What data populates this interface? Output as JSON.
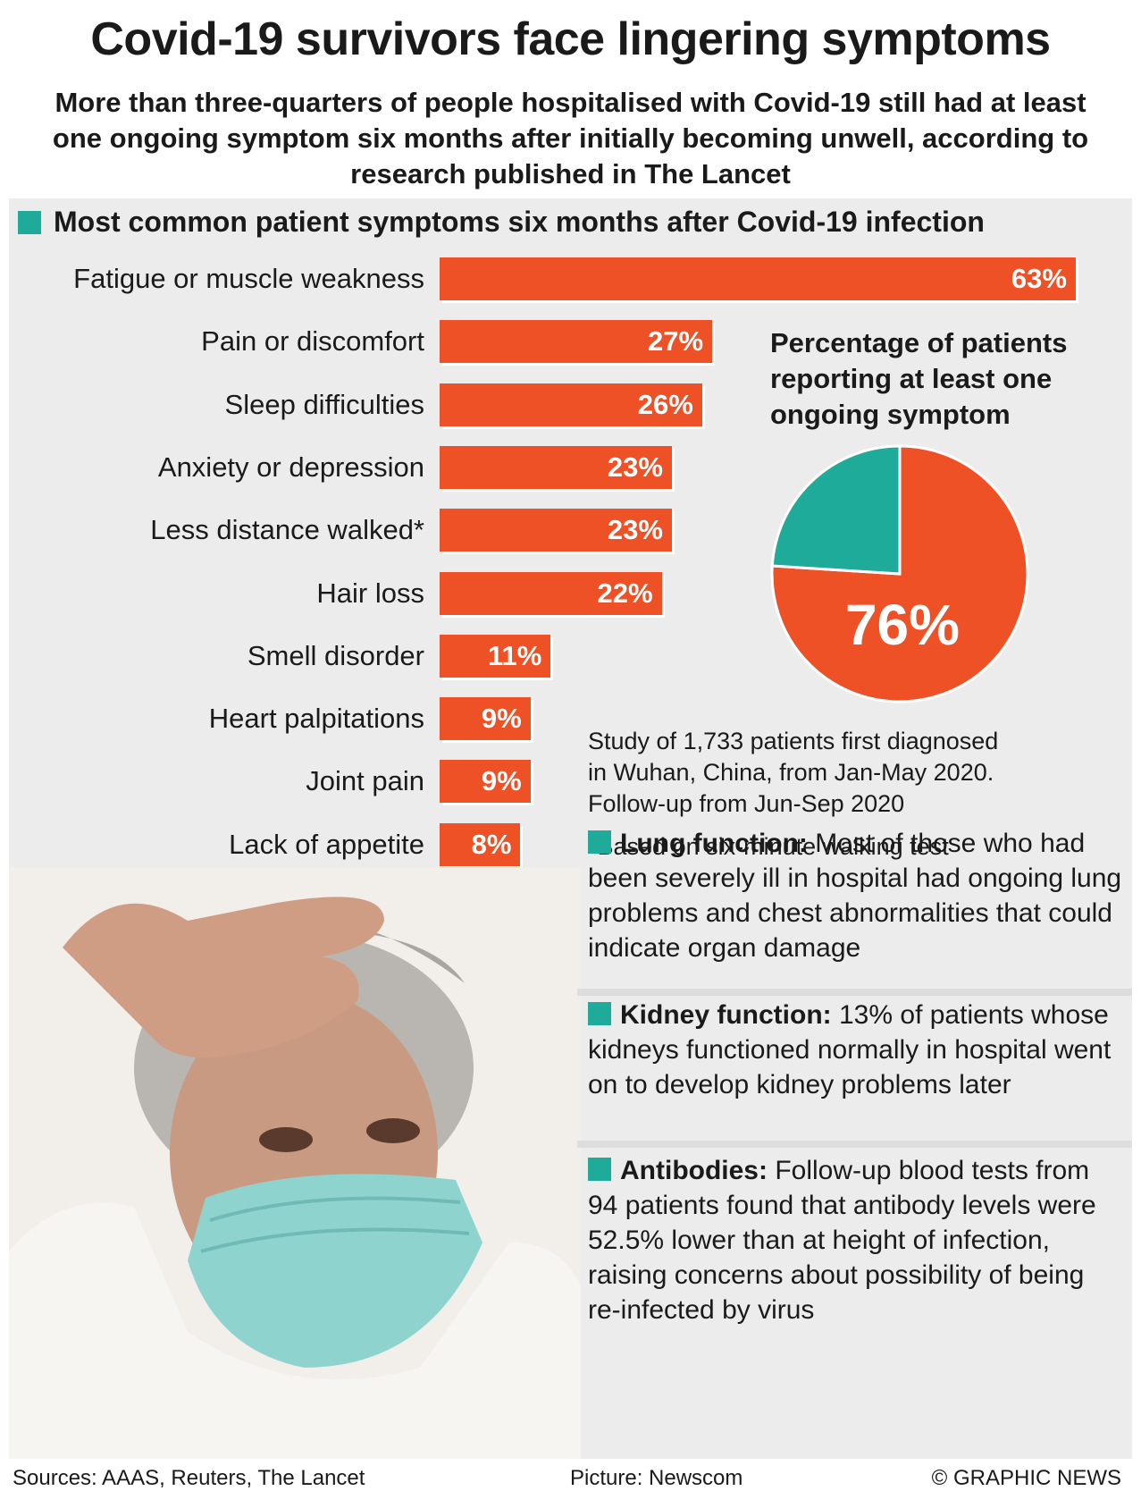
{
  "header": {
    "title": "Covid-19 survivors face lingering symptoms",
    "subtitle": "More than three-quarters of people hospitalised with Covid-19 still had at least one ongoing symptom six months after initially becoming unwell, according to research published in The Lancet"
  },
  "section_title": "Most common patient symptoms six months after Covid-19 infection",
  "colors": {
    "bar": "#ee5125",
    "accent": "#1fab9a",
    "panel": "#ececec"
  },
  "chart_data": [
    {
      "type": "bar",
      "orientation": "horizontal",
      "title": "Most common patient symptoms six months after Covid-19 infection",
      "categories": [
        "Fatigue or muscle weakness",
        "Pain or discomfort",
        "Sleep difficulties",
        "Anxiety or depression",
        "Less distance walked*",
        "Hair loss",
        "Smell disorder",
        "Heart palpitations",
        "Joint pain",
        "Lack of appetite"
      ],
      "values": [
        63,
        27,
        26,
        23,
        23,
        22,
        11,
        9,
        9,
        8
      ],
      "value_labels": [
        "63%",
        "27%",
        "26%",
        "23%",
        "23%",
        "22%",
        "11%",
        "9%",
        "9%",
        "8%"
      ],
      "unit": "%"
    },
    {
      "type": "pie",
      "title": "Percentage of patients reporting at least one ongoing symptom",
      "values": [
        76,
        24
      ],
      "label": "76%",
      "colors": [
        "#ee5125",
        "#1fab9a"
      ]
    }
  ],
  "study_note": {
    "lines": [
      "Study of 1,733 patients first diagnosed",
      "in Wuhan, China, from Jan-May 2020.",
      "Follow-up from Jun-Sep 2020"
    ],
    "footnote": "*Based on six-minute walking test"
  },
  "info_boxes": [
    {
      "heading": "Lung function:",
      "text": "Most of those who had been severely ill in hospital had ongoing lung problems and chest abnormalities that could indicate organ damage"
    },
    {
      "heading": "Kidney function:",
      "text": "13% of patients whose kidneys functioned normally in hospital went on to develop kidney problems later"
    },
    {
      "heading": "Antibodies:",
      "text": "Follow-up blood tests from 94 patients found that antibody levels were 52.5% lower than at height of infection, raising concerns about possibility of being re-infected by virus"
    }
  ],
  "footer": {
    "sources": "Sources: AAAS, Reuters, The Lancet",
    "picture": "Picture: Newscom",
    "credit": "© GRAPHIC NEWS"
  }
}
